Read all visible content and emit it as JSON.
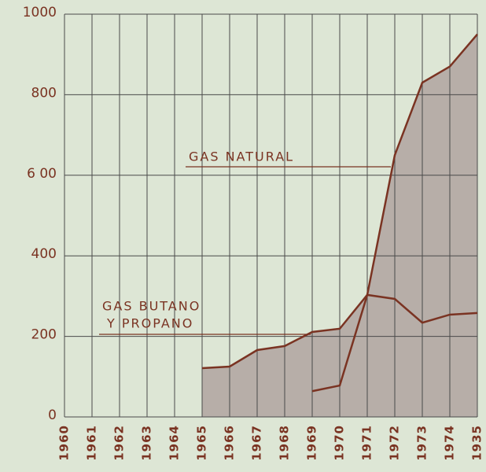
{
  "chart_data": {
    "type": "line",
    "categories": [
      "1960",
      "1961",
      "1962",
      "1963",
      "1964",
      "1965",
      "1966",
      "1967",
      "1968",
      "1969",
      "1970",
      "1971",
      "1972",
      "1973",
      "1974",
      "1935"
    ],
    "series": [
      {
        "color": "#7a3322",
        "values": [
          null,
          null,
          null,
          null,
          null,
          null,
          null,
          null,
          null,
          64,
          78,
          303,
          650,
          830,
          870,
          950
        ]
      },
      {
        "color": "#7a3322",
        "values": [
          null,
          null,
          null,
          null,
          null,
          121,
          125,
          166,
          176,
          211,
          219,
          303,
          293,
          234,
          254,
          258
        ]
      }
    ],
    "area_color": "#b7aea8",
    "annotations": [
      "GAS NATURAL",
      "GAS BUTANO",
      "Y PROPANO"
    ],
    "ylim": [
      0,
      1000
    ],
    "yticks": [
      0,
      200,
      {
        "value": 400,
        "label": "400"
      },
      {
        "value": 600,
        "label": "6 00"
      },
      800,
      1000
    ],
    "grid": true
  }
}
